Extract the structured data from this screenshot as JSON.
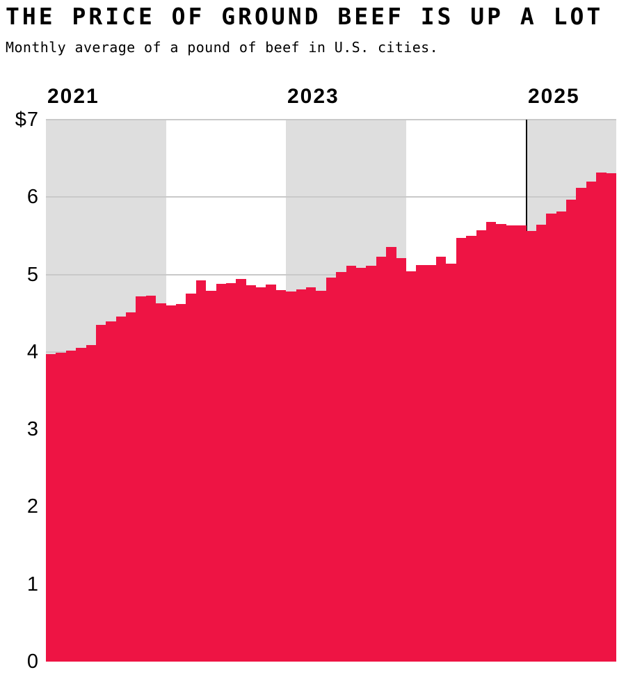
{
  "header": {
    "title": "THE PRICE OF GROUND BEEF IS UP A LOT",
    "subtitle": "Monthly average of a pound of beef in U.S. cities."
  },
  "chart_data": {
    "type": "bar",
    "title": "THE PRICE OF GROUND BEEF IS UP A LOT",
    "subtitle": "Monthly average of a pound of beef in U.S. cities.",
    "ylabel": "",
    "xlabel": "",
    "ylim": [
      0,
      7
    ],
    "grid": true,
    "months": [
      "Jan 2021",
      "Feb 2021",
      "Mar 2021",
      "Apr 2021",
      "May 2021",
      "Jun 2021",
      "Jul 2021",
      "Aug 2021",
      "Sep 2021",
      "Oct 2021",
      "Nov 2021",
      "Dec 2021",
      "Jan 2022",
      "Feb 2022",
      "Mar 2022",
      "Apr 2022",
      "May 2022",
      "Jun 2022",
      "Jul 2022",
      "Aug 2022",
      "Sep 2022",
      "Oct 2022",
      "Nov 2022",
      "Dec 2022",
      "Jan 2023",
      "Feb 2023",
      "Mar 2023",
      "Apr 2023",
      "May 2023",
      "Jun 2023",
      "Jul 2023",
      "Aug 2023",
      "Sep 2023",
      "Oct 2023",
      "Nov 2023",
      "Dec 2023",
      "Jan 2024",
      "Feb 2024",
      "Mar 2024",
      "Apr 2024",
      "May 2024",
      "Jun 2024",
      "Jul 2024",
      "Aug 2024",
      "Sep 2024",
      "Oct 2024",
      "Nov 2024",
      "Dec 2024",
      "Jan 2025",
      "Feb 2025",
      "Mar 2025",
      "Apr 2025",
      "May 2025",
      "Jun 2025",
      "Jul 2025",
      "Aug 2025",
      "Sep 2025"
    ],
    "values": [
      3.97,
      3.99,
      4.02,
      4.05,
      4.09,
      4.35,
      4.39,
      4.46,
      4.51,
      4.72,
      4.73,
      4.63,
      4.6,
      4.62,
      4.75,
      4.92,
      4.79,
      4.88,
      4.89,
      4.94,
      4.86,
      4.83,
      4.87,
      4.8,
      4.78,
      4.81,
      4.83,
      4.79,
      4.96,
      5.03,
      5.11,
      5.09,
      5.11,
      5.23,
      5.36,
      5.21,
      5.04,
      5.12,
      5.12,
      5.23,
      5.14,
      5.47,
      5.5,
      5.57,
      5.68,
      5.65,
      5.63,
      5.63,
      5.56,
      5.64,
      5.79,
      5.81,
      5.97,
      6.12,
      6.2,
      6.32,
      6.31
    ],
    "y_ticks": [
      {
        "value": 7,
        "label": "$7"
      },
      {
        "value": 6,
        "label": "6"
      },
      {
        "value": 5,
        "label": "5"
      },
      {
        "value": 4,
        "label": "4"
      },
      {
        "value": 3,
        "label": "3"
      },
      {
        "value": 2,
        "label": "2"
      },
      {
        "value": 1,
        "label": "1"
      },
      {
        "value": 0,
        "label": "0"
      }
    ],
    "x_ticks": [
      {
        "label": "2021",
        "month_index": 0
      },
      {
        "label": "2023",
        "month_index": 24
      },
      {
        "label": "2025",
        "month_index": 48
      }
    ],
    "year_bands": [
      {
        "year": 2021,
        "start_month_index": 0,
        "n_months": 12,
        "shaded": true
      },
      {
        "year": 2022,
        "start_month_index": 12,
        "n_months": 12,
        "shaded": false
      },
      {
        "year": 2023,
        "start_month_index": 24,
        "n_months": 12,
        "shaded": true
      },
      {
        "year": 2024,
        "start_month_index": 36,
        "n_months": 12,
        "shaded": false
      },
      {
        "year": 2025,
        "start_month_index": 48,
        "n_months": 9,
        "shaded": true
      }
    ],
    "event_line_month_index": 48,
    "legend": "none",
    "colors": {
      "bar": "#ee1444",
      "band_shade": "#dedede",
      "gridline": "#c9c9c9",
      "event_line": "#000000",
      "text": "#000000"
    }
  }
}
